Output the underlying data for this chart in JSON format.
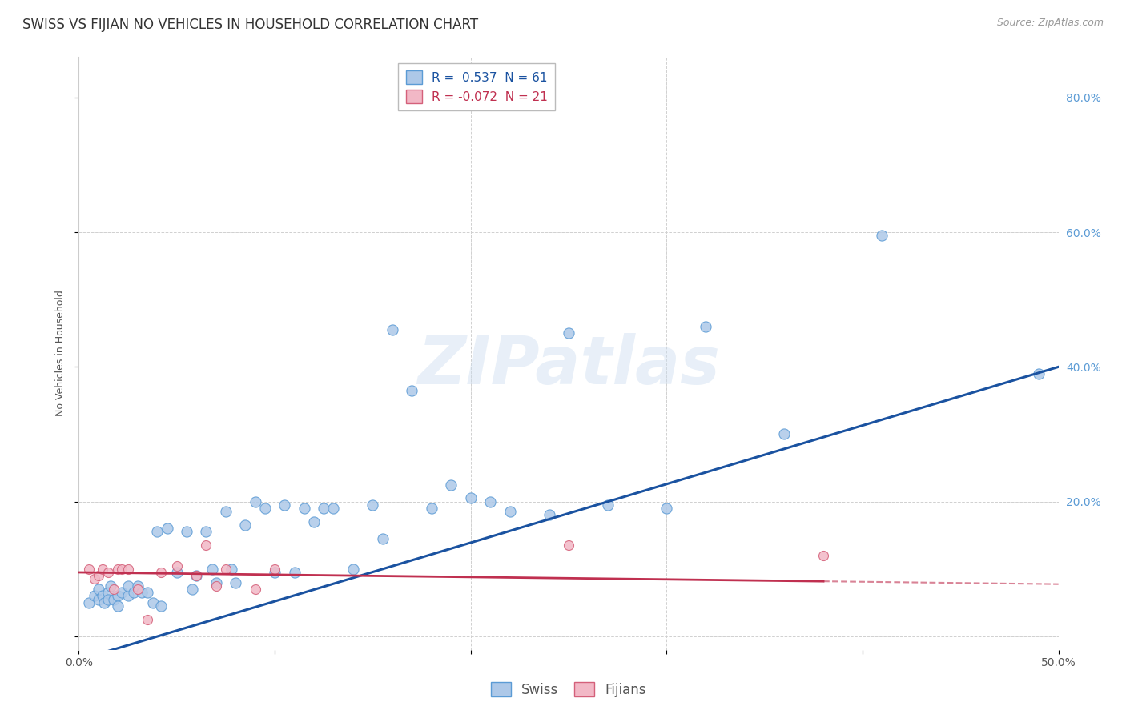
{
  "title": "SWISS VS FIJIAN NO VEHICLES IN HOUSEHOLD CORRELATION CHART",
  "source": "Source: ZipAtlas.com",
  "ylabel": "No Vehicles in Household",
  "xlim": [
    0.0,
    0.5
  ],
  "ylim": [
    -0.02,
    0.86
  ],
  "xticks": [
    0.0,
    0.1,
    0.2,
    0.3,
    0.4,
    0.5
  ],
  "xtick_labels": [
    "0.0%",
    "",
    "",
    "",
    "",
    "50.0%"
  ],
  "yticks": [
    0.0,
    0.2,
    0.4,
    0.6,
    0.8
  ],
  "ytick_right_labels": [
    "",
    "20.0%",
    "40.0%",
    "60.0%",
    "80.0%"
  ],
  "swiss_color": "#adc8e8",
  "swiss_edge_color": "#5b9bd5",
  "fijian_color": "#f2b8c6",
  "fijian_edge_color": "#d4607a",
  "trendline_swiss_color": "#1a52a0",
  "trendline_fijian_color": "#c03050",
  "legend_swiss_label": "R =  0.537  N = 61",
  "legend_fijian_label": "R = -0.072  N = 21",
  "legend_swiss_box_color": "#adc8e8",
  "legend_swiss_box_edge": "#5b9bd5",
  "legend_fijian_box_color": "#f2b8c6",
  "legend_fijian_box_edge": "#d4607a",
  "watermark": "ZIPatlas",
  "swiss_x": [
    0.005,
    0.008,
    0.01,
    0.01,
    0.012,
    0.013,
    0.015,
    0.015,
    0.016,
    0.018,
    0.02,
    0.02,
    0.022,
    0.025,
    0.025,
    0.028,
    0.03,
    0.032,
    0.035,
    0.038,
    0.04,
    0.042,
    0.045,
    0.05,
    0.055,
    0.058,
    0.06,
    0.065,
    0.068,
    0.07,
    0.075,
    0.078,
    0.08,
    0.085,
    0.09,
    0.095,
    0.1,
    0.105,
    0.11,
    0.115,
    0.12,
    0.125,
    0.13,
    0.14,
    0.15,
    0.155,
    0.16,
    0.17,
    0.18,
    0.19,
    0.2,
    0.21,
    0.22,
    0.24,
    0.25,
    0.27,
    0.3,
    0.32,
    0.36,
    0.41,
    0.49
  ],
  "swiss_y": [
    0.05,
    0.06,
    0.055,
    0.07,
    0.06,
    0.05,
    0.065,
    0.055,
    0.075,
    0.055,
    0.06,
    0.045,
    0.065,
    0.06,
    0.075,
    0.065,
    0.075,
    0.065,
    0.065,
    0.05,
    0.155,
    0.045,
    0.16,
    0.095,
    0.155,
    0.07,
    0.09,
    0.155,
    0.1,
    0.08,
    0.185,
    0.1,
    0.08,
    0.165,
    0.2,
    0.19,
    0.095,
    0.195,
    0.095,
    0.19,
    0.17,
    0.19,
    0.19,
    0.1,
    0.195,
    0.145,
    0.455,
    0.365,
    0.19,
    0.225,
    0.205,
    0.2,
    0.185,
    0.18,
    0.45,
    0.195,
    0.19,
    0.46,
    0.3,
    0.595,
    0.39
  ],
  "fijian_x": [
    0.005,
    0.008,
    0.01,
    0.012,
    0.015,
    0.018,
    0.02,
    0.022,
    0.025,
    0.03,
    0.035,
    0.042,
    0.05,
    0.06,
    0.065,
    0.07,
    0.075,
    0.09,
    0.1,
    0.25,
    0.38
  ],
  "fijian_y": [
    0.1,
    0.085,
    0.09,
    0.1,
    0.095,
    0.07,
    0.1,
    0.1,
    0.1,
    0.07,
    0.025,
    0.095,
    0.105,
    0.09,
    0.135,
    0.075,
    0.1,
    0.07,
    0.1,
    0.135,
    0.12
  ],
  "background_color": "#ffffff",
  "grid_color": "#d0d0d0",
  "swiss_marker_size": 90,
  "fijian_marker_size": 75,
  "title_fontsize": 12,
  "axis_label_fontsize": 9,
  "tick_fontsize": 10,
  "legend_fontsize": 11,
  "swiss_line_intercept": -0.035,
  "swiss_line_slope": 0.87,
  "fijian_line_intercept": 0.095,
  "fijian_line_slope": -0.035
}
